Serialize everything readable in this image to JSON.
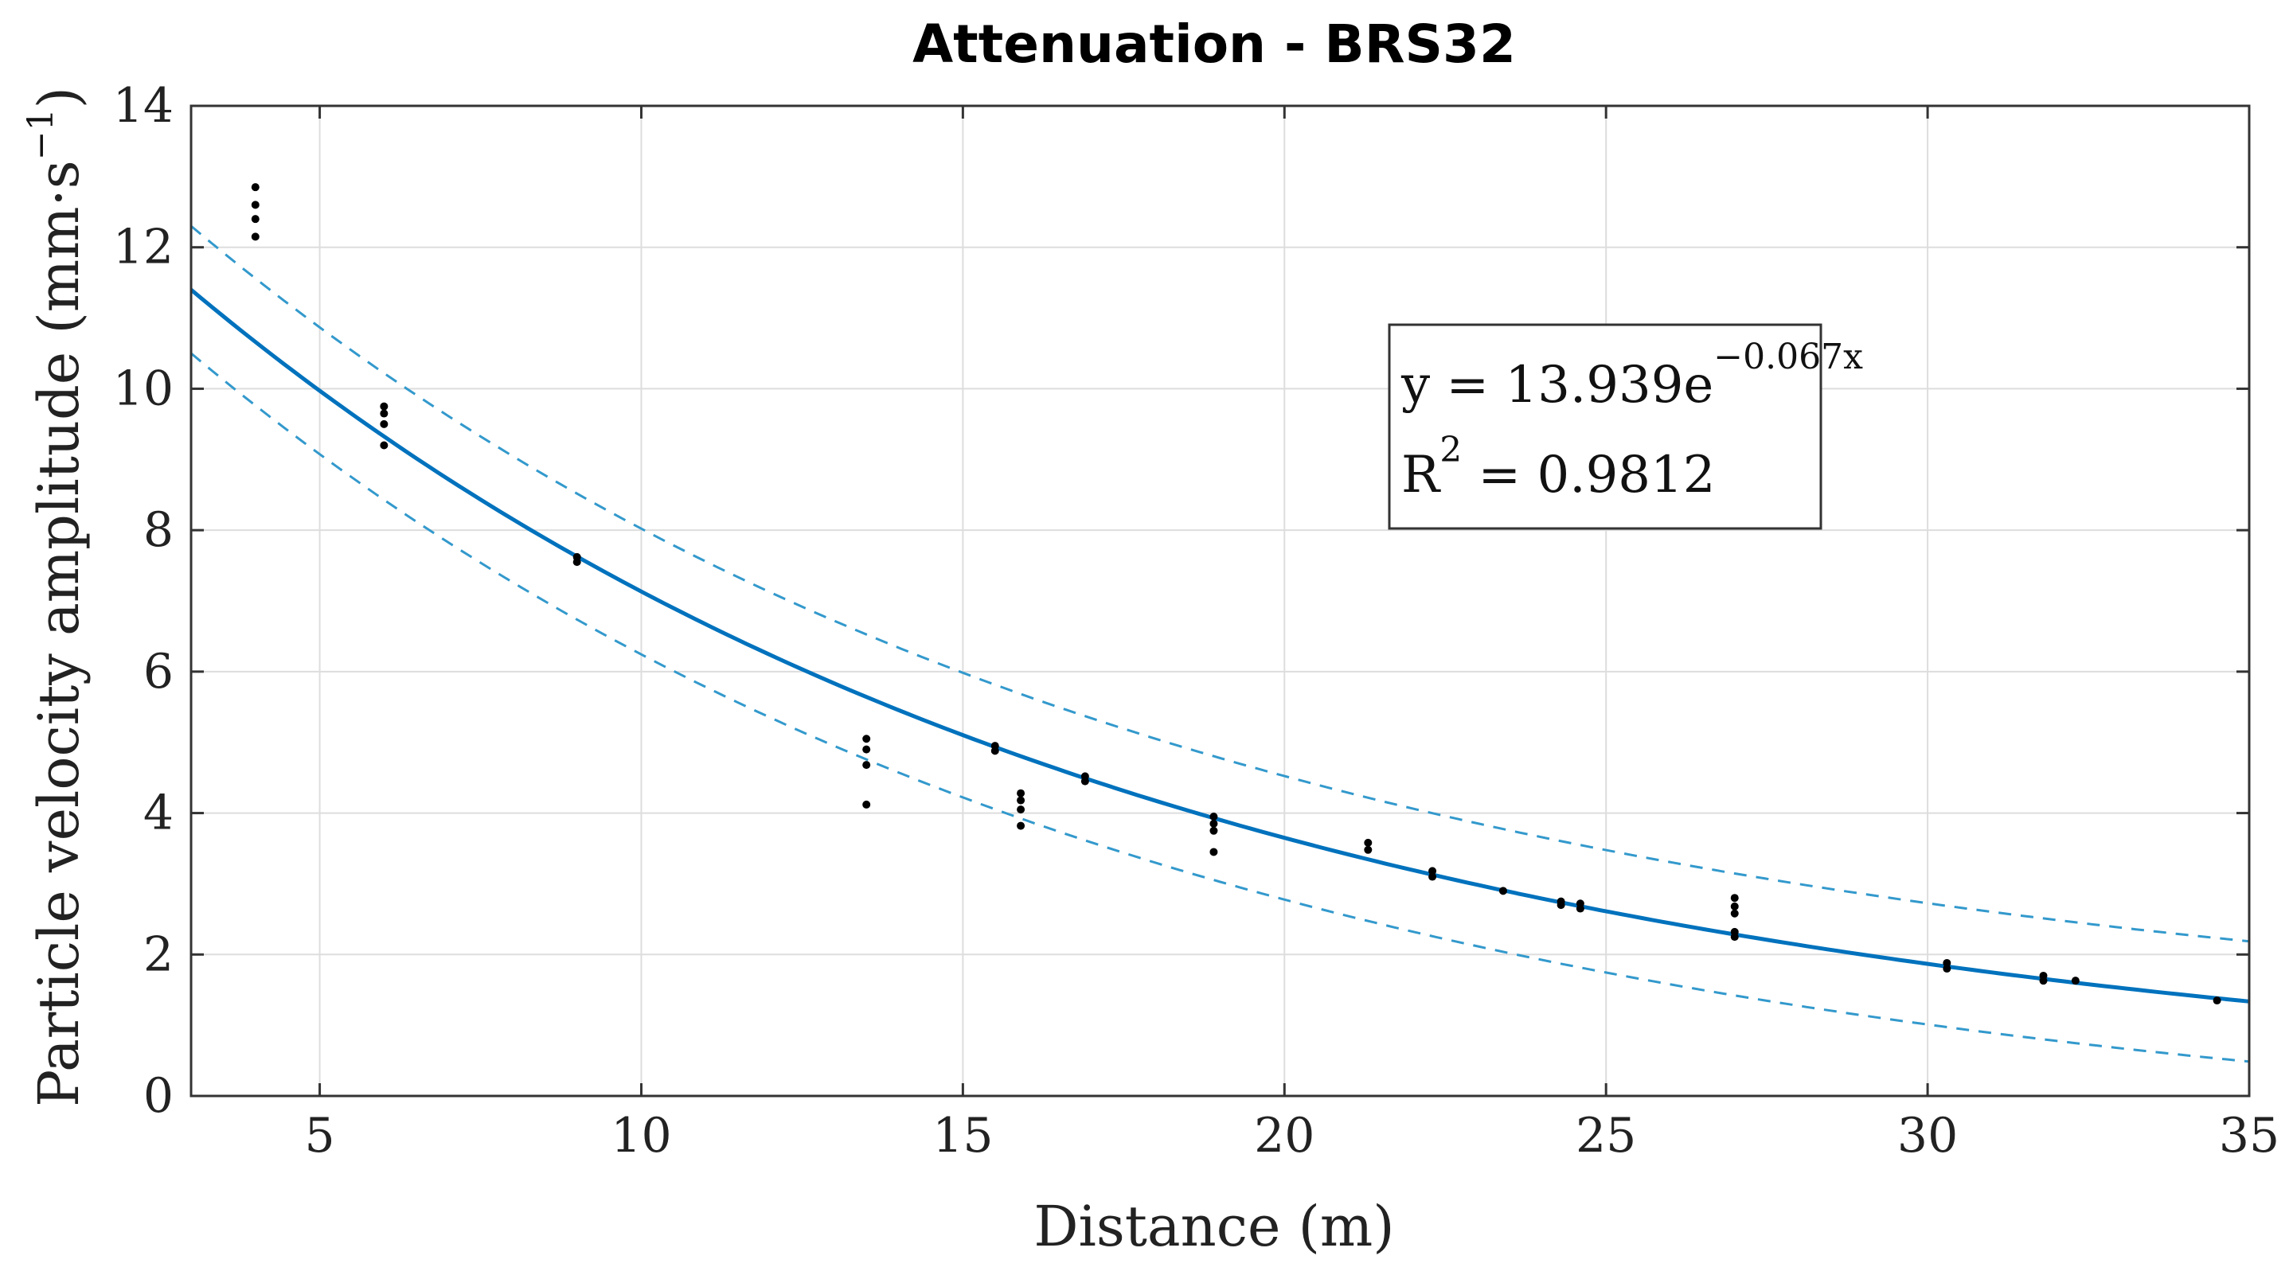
{
  "chart_data": {
    "type": "scatter",
    "title": "Attenuation - BRS32",
    "xlabel": "Distance (m)",
    "ylabel_main": "Particle velocity amplitude (mm·s",
    "ylabel_exp": "−1",
    "ylabel_close": ")",
    "xlim": [
      3,
      35
    ],
    "ylim": [
      0,
      14
    ],
    "xticks": [
      5,
      10,
      15,
      20,
      25,
      30,
      35
    ],
    "yticks": [
      0,
      2,
      4,
      6,
      8,
      10,
      12,
      14
    ],
    "grid": true,
    "colors": {
      "fit": "#0072BD",
      "bounds": "#3399CC",
      "points": "#000000"
    },
    "fit": {
      "a": 13.939,
      "b": -0.067,
      "equation_prefix": "y = 13.939e",
      "equation_exponent": "−0.067x",
      "r2_prefix": "R",
      "r2_exponent": "2",
      "r2_value": " = 0.9812"
    },
    "bounds": {
      "upper_offset": [
        0.9,
        0.85
      ],
      "lower_offset": [
        0.9,
        0.85
      ]
    },
    "points": [
      {
        "x": 4,
        "y": 12.85
      },
      {
        "x": 4,
        "y": 12.6
      },
      {
        "x": 4,
        "y": 12.4
      },
      {
        "x": 4,
        "y": 12.15
      },
      {
        "x": 6,
        "y": 9.75
      },
      {
        "x": 6,
        "y": 9.65
      },
      {
        "x": 6,
        "y": 9.5
      },
      {
        "x": 6,
        "y": 9.2
      },
      {
        "x": 9,
        "y": 7.62
      },
      {
        "x": 9,
        "y": 7.55
      },
      {
        "x": 13.5,
        "y": 5.05
      },
      {
        "x": 13.5,
        "y": 4.9
      },
      {
        "x": 13.5,
        "y": 4.68
      },
      {
        "x": 13.5,
        "y": 4.12
      },
      {
        "x": 15.5,
        "y": 4.95
      },
      {
        "x": 15.5,
        "y": 4.88
      },
      {
        "x": 15.9,
        "y": 4.28
      },
      {
        "x": 15.9,
        "y": 4.18
      },
      {
        "x": 15.9,
        "y": 4.05
      },
      {
        "x": 15.9,
        "y": 3.82
      },
      {
        "x": 16.9,
        "y": 4.52
      },
      {
        "x": 16.9,
        "y": 4.45
      },
      {
        "x": 18.9,
        "y": 3.95
      },
      {
        "x": 18.9,
        "y": 3.85
      },
      {
        "x": 18.9,
        "y": 3.75
      },
      {
        "x": 18.9,
        "y": 3.45
      },
      {
        "x": 21.3,
        "y": 3.58
      },
      {
        "x": 21.3,
        "y": 3.48
      },
      {
        "x": 22.3,
        "y": 3.18
      },
      {
        "x": 22.3,
        "y": 3.1
      },
      {
        "x": 23.4,
        "y": 2.9
      },
      {
        "x": 24.3,
        "y": 2.75
      },
      {
        "x": 24.3,
        "y": 2.7
      },
      {
        "x": 24.6,
        "y": 2.72
      },
      {
        "x": 24.6,
        "y": 2.65
      },
      {
        "x": 27,
        "y": 2.8
      },
      {
        "x": 27,
        "y": 2.68
      },
      {
        "x": 27,
        "y": 2.58
      },
      {
        "x": 27,
        "y": 2.32
      },
      {
        "x": 27,
        "y": 2.25
      },
      {
        "x": 30.3,
        "y": 1.88
      },
      {
        "x": 30.3,
        "y": 1.8
      },
      {
        "x": 31.8,
        "y": 1.7
      },
      {
        "x": 31.8,
        "y": 1.63
      },
      {
        "x": 32.3,
        "y": 1.63
      },
      {
        "x": 34.5,
        "y": 1.35
      }
    ]
  }
}
